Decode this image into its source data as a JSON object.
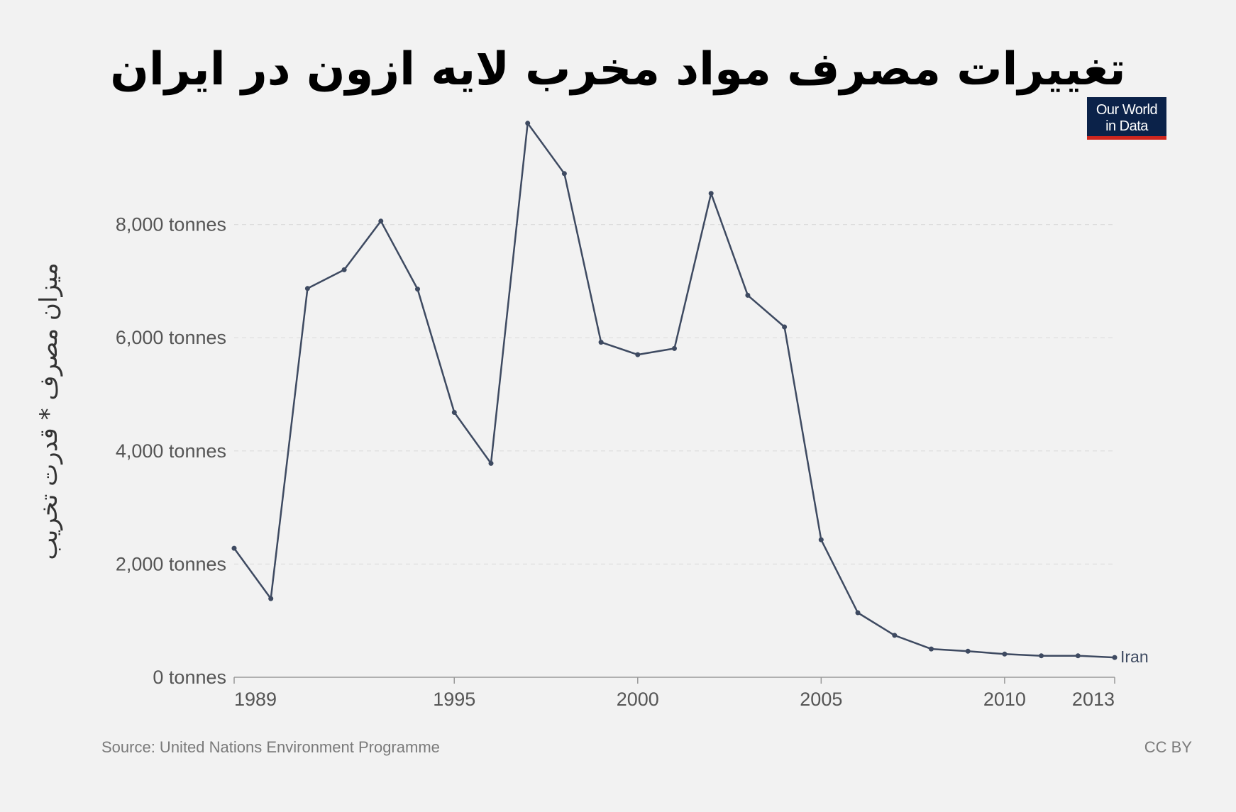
{
  "title": "تغییرات مصرف مواد مخرب لایه ازون در ایران",
  "logo": {
    "line1": "Our World",
    "line2": "in Data"
  },
  "footer": {
    "source": "Source: United Nations Environment Programme",
    "license": "CC BY"
  },
  "colors": {
    "background": "#f2f2f2",
    "line": "#3e4a61",
    "axis_text": "#555555",
    "grid": "#dddddd",
    "logo_bg": "#0b2249",
    "logo_accent": "#ce261e"
  },
  "chart_data": {
    "type": "line",
    "title": "تغییرات مصرف مواد مخرب لایه ازون در ایران",
    "xlabel": "",
    "ylabel": "میزان مصرف * قدرت تخریب",
    "xlim": [
      1989,
      2013
    ],
    "ylim": [
      0,
      10000
    ],
    "x_ticks": [
      {
        "value": 1989,
        "label": "1989"
      },
      {
        "value": 1995,
        "label": "1995"
      },
      {
        "value": 2000,
        "label": "2000"
      },
      {
        "value": 2005,
        "label": "2005"
      },
      {
        "value": 2010,
        "label": "2010"
      },
      {
        "value": 2013,
        "label": "2013"
      }
    ],
    "y_ticks": [
      {
        "value": 0,
        "label": "0 tonnes"
      },
      {
        "value": 2000,
        "label": "2,000 tonnes"
      },
      {
        "value": 4000,
        "label": "4,000 tonnes"
      },
      {
        "value": 6000,
        "label": "6,000 tonnes"
      },
      {
        "value": 8000,
        "label": "8,000 tonnes"
      }
    ],
    "grid": "horizontal dashed",
    "series": [
      {
        "name": "Iran",
        "x": [
          1989,
          1990,
          1991,
          1992,
          1993,
          1994,
          1995,
          1996,
          1997,
          1998,
          1999,
          2000,
          2001,
          2002,
          2003,
          2004,
          2005,
          2006,
          2007,
          2008,
          2009,
          2010,
          2011,
          2012,
          2013
        ],
        "values": [
          2280,
          1390,
          6870,
          7200,
          8060,
          6860,
          4680,
          3780,
          9790,
          8900,
          5920,
          5700,
          5810,
          8550,
          6750,
          6190,
          2430,
          1140,
          740,
          500,
          460,
          410,
          380,
          380,
          350
        ]
      }
    ]
  }
}
